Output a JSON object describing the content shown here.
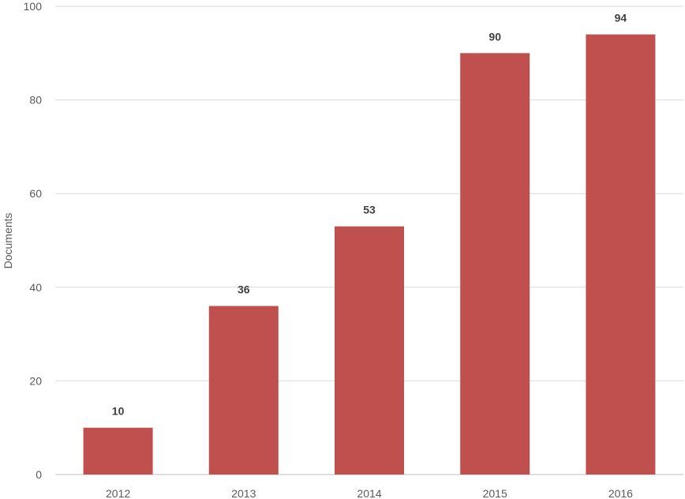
{
  "chart_data": {
    "type": "bar",
    "categories": [
      "2012",
      "2013",
      "2014",
      "2015",
      "2016"
    ],
    "values": [
      10,
      36,
      53,
      90,
      94
    ],
    "title": "",
    "xlabel": "",
    "ylabel": "Documents",
    "ylim": [
      0,
      100
    ],
    "yticks": [
      0,
      20,
      40,
      60,
      80,
      100
    ],
    "grid": true,
    "legend": "none",
    "data_labels": true,
    "bar_color": "#c0504d"
  }
}
